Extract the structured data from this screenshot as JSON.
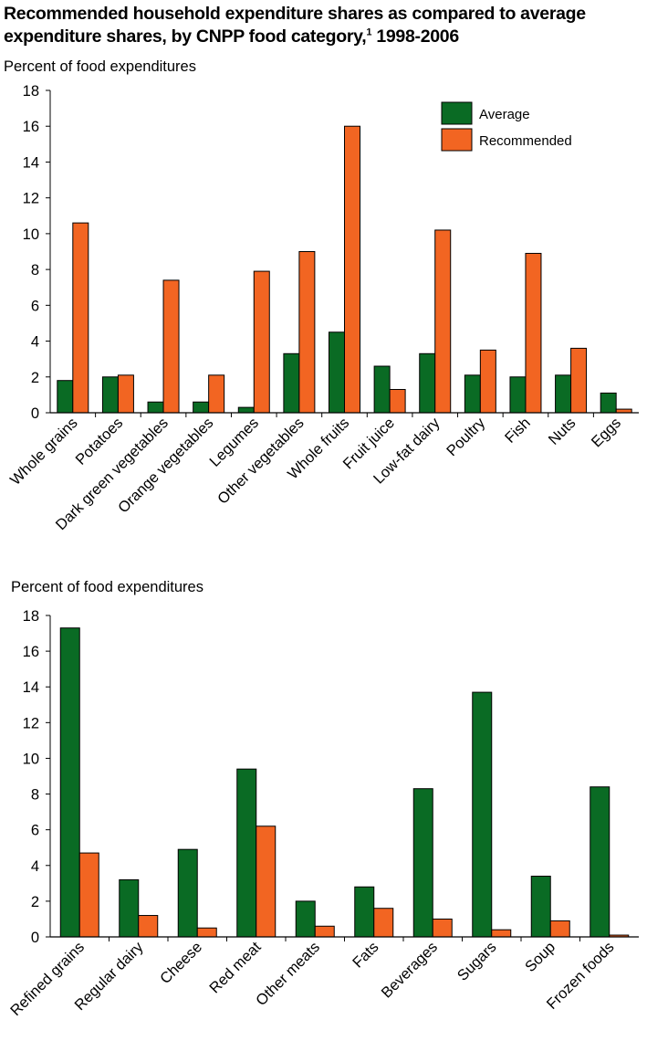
{
  "title": {
    "main": "Recommended household expenditure shares as compared to average expenditure shares, by CNPP food category,",
    "footnote_mark": "1",
    "years": " 1998-2006"
  },
  "colors": {
    "average": "#0a6b24",
    "recommended": "#f26522"
  },
  "chart_data": [
    {
      "type": "bar",
      "ylabel": "Percent of food expenditures",
      "ylim": [
        0,
        18
      ],
      "yticks": [
        0,
        2,
        4,
        6,
        8,
        10,
        12,
        14,
        16,
        18
      ],
      "legend": {
        "placement": "top-right"
      },
      "categories": [
        "Whole grains",
        "Potatoes",
        "Dark green vegetables",
        "Orange vegetables",
        "Legumes",
        "Other vegetables",
        "Whole fruits",
        "Fruit juice",
        "Low-fat dairy",
        "Poultry",
        "Fish",
        "Nuts",
        "Eggs"
      ],
      "series": [
        {
          "name": "Average",
          "values": [
            1.8,
            2.0,
            0.6,
            0.6,
            0.3,
            3.3,
            4.5,
            2.6,
            3.3,
            2.1,
            2.0,
            2.1,
            1.1
          ]
        },
        {
          "name": "Recommended",
          "values": [
            10.6,
            2.1,
            7.4,
            2.1,
            7.9,
            9.0,
            16.0,
            1.3,
            10.2,
            3.5,
            8.9,
            3.6,
            0.2
          ]
        }
      ]
    },
    {
      "type": "bar",
      "ylabel": "Percent of food expenditures",
      "ylim": [
        0,
        18
      ],
      "yticks": [
        0,
        2,
        4,
        6,
        8,
        10,
        12,
        14,
        16,
        18
      ],
      "categories": [
        "Refined grains",
        "Regular dairy",
        "Cheese",
        "Red meat",
        "Other meats",
        "Fats",
        "Beverages",
        "Sugars",
        "Soup",
        "Frozen foods"
      ],
      "series": [
        {
          "name": "Average",
          "values": [
            17.3,
            3.2,
            4.9,
            9.4,
            2.0,
            2.8,
            8.3,
            13.7,
            3.4,
            8.4
          ]
        },
        {
          "name": "Recommended",
          "values": [
            4.7,
            1.2,
            0.5,
            6.2,
            0.6,
            1.6,
            1.0,
            0.4,
            0.9,
            0.1
          ]
        }
      ]
    }
  ]
}
